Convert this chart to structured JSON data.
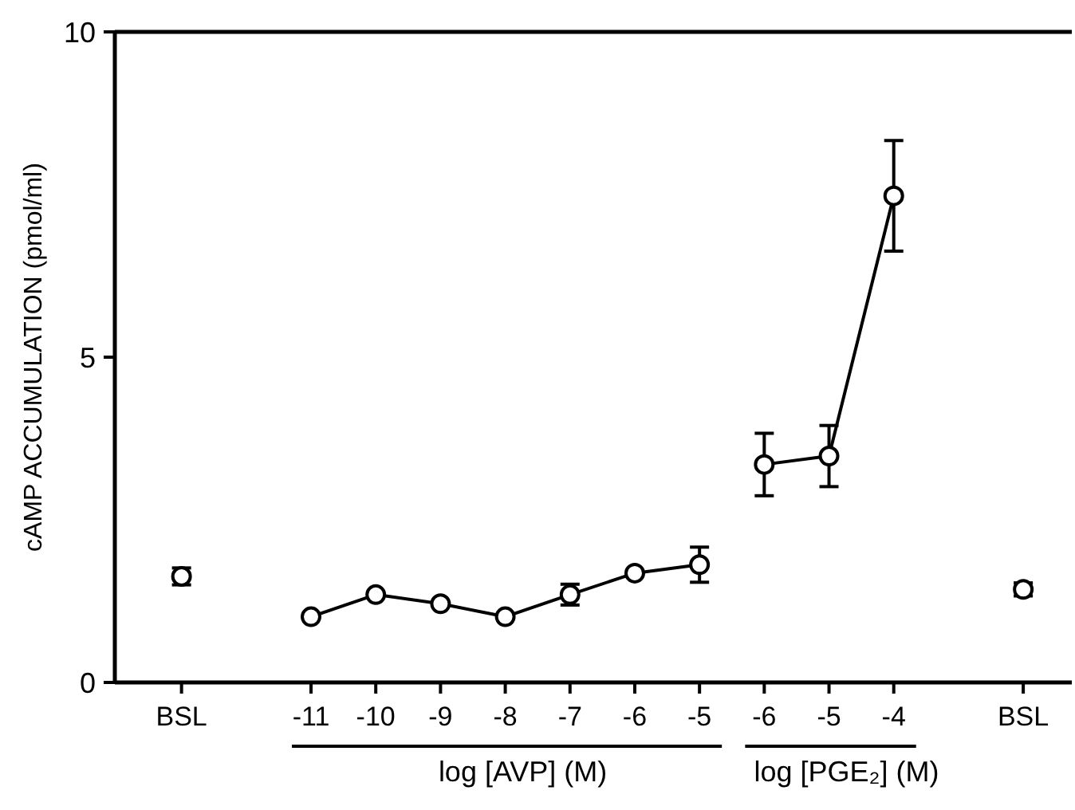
{
  "chart_data": {
    "type": "line",
    "ylabel": "cAMP ACCUMULATION (pmol/ml)",
    "categories": [
      "BSL",
      null,
      "-11",
      "-10",
      "-9",
      "-8",
      "-7",
      "-6",
      "-5",
      "-6",
      "-5",
      "-4",
      null,
      "BSL"
    ],
    "series": [
      {
        "type": "scatter",
        "color": "#000000",
        "values": [
          1.63,
          null,
          null,
          null,
          null,
          null,
          null,
          null,
          null,
          null,
          null,
          null,
          null,
          1.43
        ],
        "errors": [
          0.13,
          null,
          null,
          null,
          null,
          null,
          null,
          null,
          null,
          null,
          null,
          null,
          null,
          0.1
        ]
      },
      {
        "color": "#000000",
        "values": [
          null,
          null,
          1.01,
          1.35,
          1.21,
          1.01,
          1.35,
          1.68,
          1.81,
          null,
          null,
          null,
          null,
          null
        ],
        "errors": [
          null,
          null,
          null,
          null,
          null,
          null,
          0.16,
          null,
          0.27,
          null,
          null,
          null,
          null,
          null
        ]
      },
      {
        "color": "#000000",
        "values": [
          null,
          null,
          null,
          null,
          null,
          null,
          null,
          null,
          null,
          3.35,
          3.48,
          7.48,
          null,
          null
        ],
        "errors": [
          null,
          null,
          null,
          null,
          null,
          null,
          null,
          null,
          null,
          0.48,
          0.47,
          0.85,
          null,
          null
        ]
      }
    ],
    "annotations": [
      "log [AVP] (M)",
      "log [PGE₂] (M)"
    ],
    "ylim": [
      0,
      10
    ],
    "yticks": [
      0,
      5,
      10
    ],
    "marker": "circle",
    "line_style": "solid",
    "grid": false
  }
}
